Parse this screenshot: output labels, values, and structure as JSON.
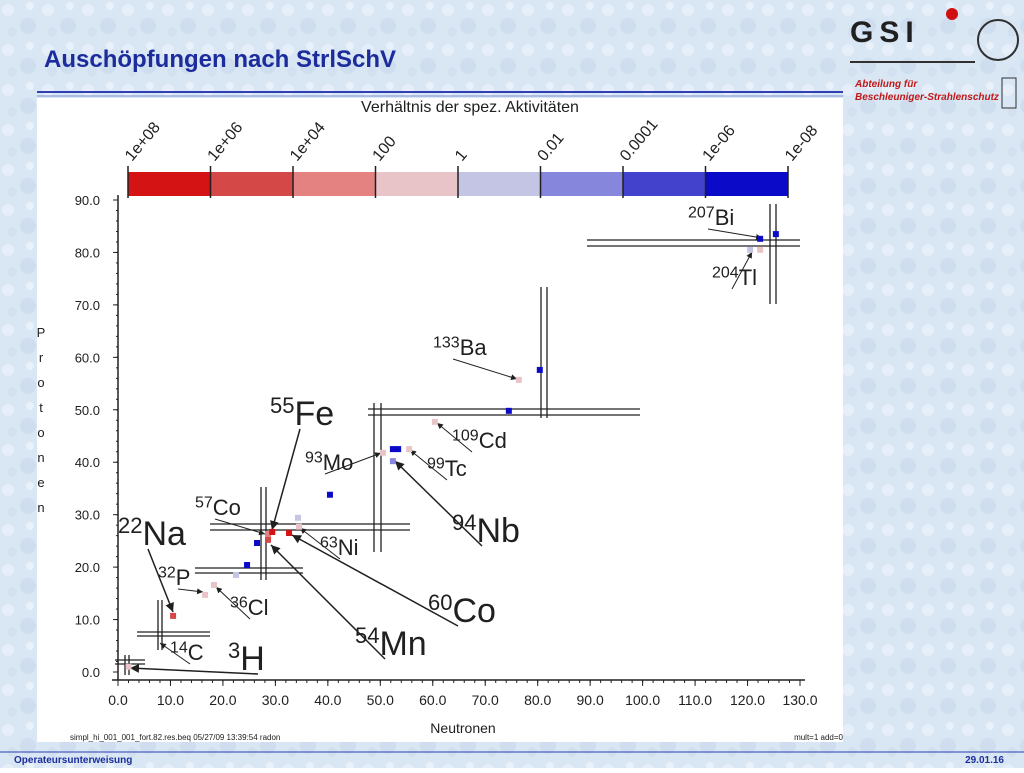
{
  "slide": {
    "title": "Auschöpfungen nach StrlSchV",
    "logo": "GSI",
    "department_line1": "Abteilung für",
    "department_line2": "Beschleuniger-Strahlenschutz",
    "footer_left": "Operateursunterweisung",
    "footer_right": "29.01.16"
  },
  "chart_data": {
    "type": "scatter",
    "title": "Verhältnis der spez. Aktivitäten",
    "x_label": "Neutronen",
    "y_label": [
      "P",
      "r",
      "o",
      "t",
      "o",
      "n",
      "e",
      "n"
    ],
    "footnote_left": "simpl_hi_001_001_fort.82.res.beq 05/27/09 13:39:54 radon",
    "footnote_right": "mult=1 add=0",
    "colorbar": {
      "labels": [
        "1e+08",
        "1e+06",
        "1e+04",
        "100",
        "1",
        "0.01",
        "0.0001",
        "1e-06",
        "1e-08"
      ],
      "colors": [
        "#d41414",
        "#d44848",
        "#e48282",
        "#e8c4c8",
        "#c4c4e4",
        "#8686dc",
        "#4242cc",
        "#0a0ac8"
      ]
    },
    "xlim": [
      0,
      130
    ],
    "ylim": [
      0,
      90
    ],
    "xticks": [
      {
        "value": 0,
        "label": "0.0"
      },
      {
        "value": 10,
        "label": "10.0"
      },
      {
        "value": 20,
        "label": "20.0"
      },
      {
        "value": 30,
        "label": "30.0"
      },
      {
        "value": 40,
        "label": "40.0"
      },
      {
        "value": 50,
        "label": "50.0"
      },
      {
        "value": 60,
        "label": "60.0"
      },
      {
        "value": 70,
        "label": "70.0"
      },
      {
        "value": 80,
        "label": "80.0"
      },
      {
        "value": 90,
        "label": "90.0"
      },
      {
        "value": 100,
        "label": "100.0"
      },
      {
        "value": 110,
        "label": "110.0"
      },
      {
        "value": 120,
        "label": "120.0"
      },
      {
        "value": 130,
        "label": "130.0"
      }
    ],
    "yticks": [
      {
        "value": 0,
        "label": "0.0"
      },
      {
        "value": 10,
        "label": "10.0"
      },
      {
        "value": 20,
        "label": "20.0"
      },
      {
        "value": 30,
        "label": "30.0"
      },
      {
        "value": 40,
        "label": "40.0"
      },
      {
        "value": 50,
        "label": "50.0"
      },
      {
        "value": 60,
        "label": "60.0"
      },
      {
        "value": 70,
        "label": "70.0"
      },
      {
        "value": 80,
        "label": "80.0"
      },
      {
        "value": 90,
        "label": "90.0"
      }
    ],
    "points": [
      {
        "x": 2,
        "y": 1,
        "color": "#e8c4c8"
      },
      {
        "x": 10.5,
        "y": 10.7,
        "color": "#d44848"
      },
      {
        "x": 16.6,
        "y": 14.7,
        "color": "#e8c4c8"
      },
      {
        "x": 18.3,
        "y": 16.6,
        "color": "#e8c4c8"
      },
      {
        "x": 22.5,
        "y": 18.5,
        "color": "#c4c4e4"
      },
      {
        "x": 24.6,
        "y": 20.4,
        "color": "#0a0ac8"
      },
      {
        "x": 26.5,
        "y": 24.6,
        "color": "#0a0ac8"
      },
      {
        "x": 28.6,
        "y": 25.2,
        "color": "#d44848"
      },
      {
        "x": 28.6,
        "y": 26.3,
        "color": "#e48282"
      },
      {
        "x": 29.4,
        "y": 26.7,
        "color": "#d41414"
      },
      {
        "x": 32.6,
        "y": 26.5,
        "color": "#d41414"
      },
      {
        "x": 34.3,
        "y": 29.4,
        "color": "#c4c4e4"
      },
      {
        "x": 34.5,
        "y": 27.7,
        "color": "#e8c4c8"
      },
      {
        "x": 40.4,
        "y": 33.8,
        "color": "#0a0ac8"
      },
      {
        "x": 50.5,
        "y": 41.8,
        "color": "#e8c4c8"
      },
      {
        "x": 52.4,
        "y": 42.5,
        "color": "#0a0ac8"
      },
      {
        "x": 53.4,
        "y": 42.5,
        "color": "#0a0ac8"
      },
      {
        "x": 52.4,
        "y": 40.2,
        "color": "#8686dc"
      },
      {
        "x": 55.5,
        "y": 42.5,
        "color": "#e8c4c8"
      },
      {
        "x": 60.4,
        "y": 47.7,
        "color": "#e8c4c8"
      },
      {
        "x": 74.5,
        "y": 49.8,
        "color": "#0a0ac8"
      },
      {
        "x": 76.4,
        "y": 55.7,
        "color": "#e8c4c8"
      },
      {
        "x": 80.4,
        "y": 57.6,
        "color": "#0a0ac8"
      },
      {
        "x": 120.5,
        "y": 80.5,
        "color": "#c4c4e4"
      },
      {
        "x": 122.4,
        "y": 82.6,
        "color": "#0a0ac8"
      },
      {
        "x": 122.4,
        "y": 80.5,
        "color": "#e8c4c8"
      },
      {
        "x": 125.4,
        "y": 83.5,
        "color": "#0a0ac8"
      }
    ],
    "annotations": [
      {
        "mass": "207",
        "symbol": "Bi"
      },
      {
        "mass": "204",
        "symbol": "Tl"
      },
      {
        "mass": "133",
        "symbol": "Ba"
      },
      {
        "mass": "55",
        "symbol": "Fe"
      },
      {
        "mass": "109",
        "symbol": "Cd"
      },
      {
        "mass": "93",
        "symbol": "Mo"
      },
      {
        "mass": "99",
        "symbol": "Tc"
      },
      {
        "mass": "57",
        "symbol": "Co"
      },
      {
        "mass": "94",
        "symbol": "Nb"
      },
      {
        "mass": "22",
        "symbol": "Na"
      },
      {
        "mass": "63",
        "symbol": "Ni"
      },
      {
        "mass": "32",
        "symbol": "P"
      },
      {
        "mass": "36",
        "symbol": "Cl"
      },
      {
        "mass": "60",
        "symbol": "Co"
      },
      {
        "mass": "54",
        "symbol": "Mn"
      },
      {
        "mass": "14",
        "symbol": "C"
      },
      {
        "mass": "3",
        "symbol": "H"
      }
    ]
  }
}
